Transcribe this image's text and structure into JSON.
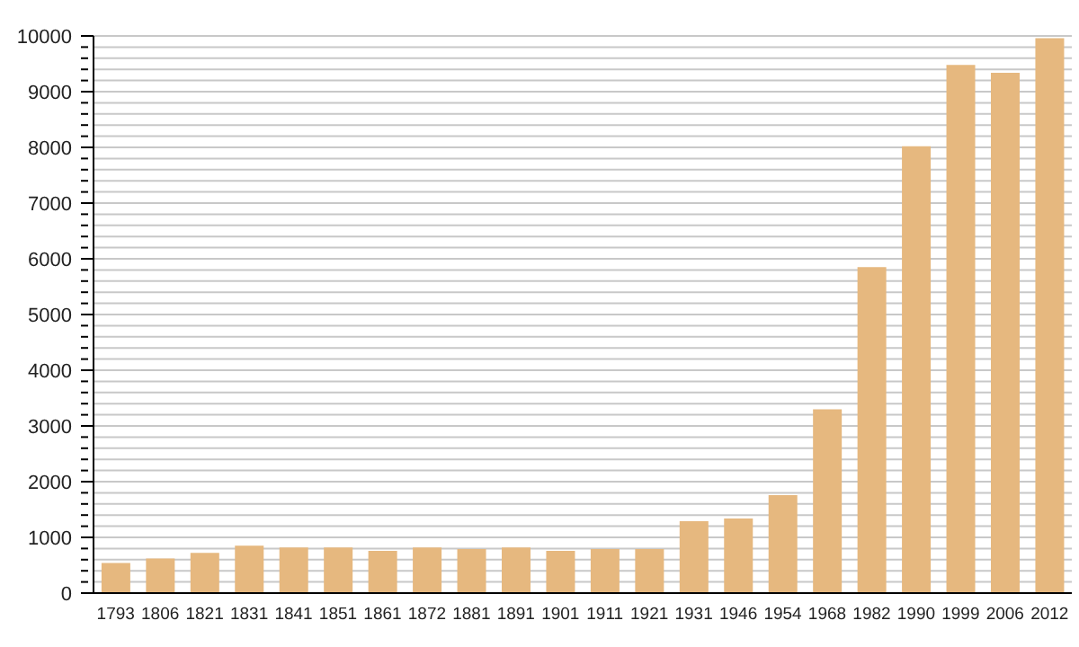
{
  "chart_data": {
    "type": "bar",
    "categories": [
      "1793",
      "1806",
      "1821",
      "1831",
      "1841",
      "1851",
      "1861",
      "1872",
      "1881",
      "1891",
      "1901",
      "1911",
      "1921",
      "1931",
      "1946",
      "1954",
      "1968",
      "1982",
      "1990",
      "1999",
      "2006",
      "2012"
    ],
    "values": [
      540,
      620,
      720,
      850,
      820,
      820,
      760,
      820,
      790,
      820,
      760,
      790,
      790,
      1290,
      1340,
      1760,
      3300,
      5850,
      8020,
      9480,
      9340,
      9960
    ],
    "color": "#e6b87f",
    "ylim": [
      0,
      10000
    ],
    "yticks": [
      0,
      {
        "value": 200,
        "label": null
      },
      {
        "value": 400,
        "label": null
      },
      {
        "value": 600,
        "label": null
      },
      {
        "value": 800,
        "label": null
      },
      1000,
      {
        "value": 1200,
        "label": null
      },
      {
        "value": 1400,
        "label": null
      },
      {
        "value": 1600,
        "label": null
      },
      {
        "value": 1800,
        "label": null
      },
      2000,
      {
        "value": 2200,
        "label": null
      },
      {
        "value": 2400,
        "label": null
      },
      {
        "value": 2600,
        "label": null
      },
      {
        "value": 2800,
        "label": null
      },
      3000,
      {
        "value": 3200,
        "label": null
      },
      {
        "value": 3400,
        "label": null
      },
      {
        "value": 3600,
        "label": null
      },
      {
        "value": 3800,
        "label": null
      },
      4000,
      {
        "value": 4200,
        "label": null
      },
      {
        "value": 4400,
        "label": null
      },
      {
        "value": 4600,
        "label": null
      },
      {
        "value": 4800,
        "label": null
      },
      5000,
      {
        "value": 5200,
        "label": null
      },
      {
        "value": 5400,
        "label": null
      },
      {
        "value": 5600,
        "label": null
      },
      {
        "value": 5800,
        "label": null
      },
      6000,
      {
        "value": 6200,
        "label": null
      },
      {
        "value": 6400,
        "label": null
      },
      {
        "value": 6600,
        "label": null
      },
      {
        "value": 6800,
        "label": null
      },
      7000,
      {
        "value": 7200,
        "label": null
      },
      {
        "value": 7400,
        "label": null
      },
      {
        "value": 7600,
        "label": null
      },
      {
        "value": 7800,
        "label": null
      },
      8000,
      {
        "value": 8200,
        "label": null
      },
      {
        "value": 8400,
        "label": null
      },
      {
        "value": 8600,
        "label": null
      },
      {
        "value": 8800,
        "label": null
      },
      9000,
      {
        "value": 9200,
        "label": null
      },
      {
        "value": 9400,
        "label": null
      },
      {
        "value": 9600,
        "label": null
      },
      {
        "value": 9800,
        "label": null
      },
      10000
    ],
    "grid": "y",
    "legend": false
  }
}
